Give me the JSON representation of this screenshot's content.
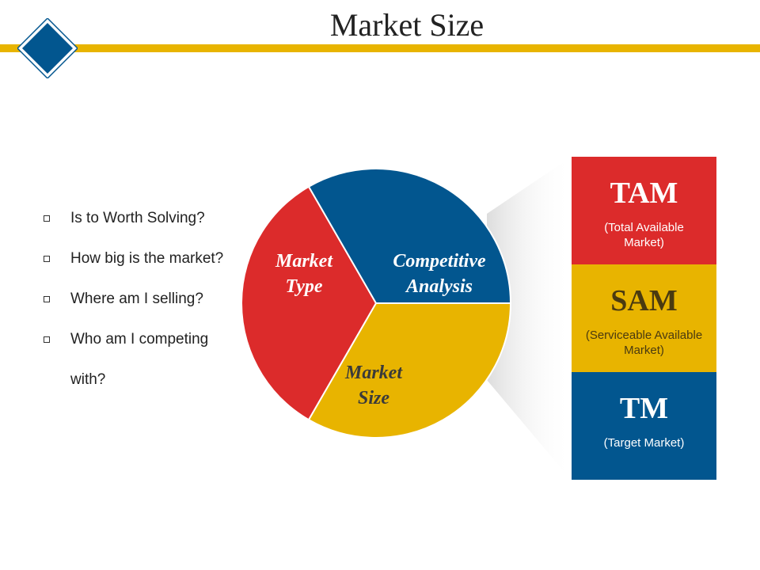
{
  "header": {
    "title": "Market Size",
    "bar_color": "#e8b400",
    "logo": {
      "icon": "diamond-logo-icon",
      "color": "#02568f"
    }
  },
  "questions": [
    "Is to Worth Solving?",
    "How big is the market?",
    "Where am I selling?",
    "Who am I competing",
    "with?"
  ],
  "pie": {
    "segments": [
      {
        "label_line1": "Market",
        "label_line2": "Type",
        "color": "#dc2b2b"
      },
      {
        "label_line1": "Competitive",
        "label_line2": "Analysis",
        "color": "#02568f"
      },
      {
        "label_line1": "Market",
        "label_line2": "Size",
        "color": "#e8b400"
      }
    ]
  },
  "market_stack": [
    {
      "abbr": "TAM",
      "desc": "(Total Available Market)",
      "color": "#dc2b2b"
    },
    {
      "abbr": "SAM",
      "desc": "(Serviceable Available Market)",
      "color": "#e8b400"
    },
    {
      "abbr": "TM",
      "desc": "(Target Market)",
      "color": "#02568f"
    }
  ]
}
